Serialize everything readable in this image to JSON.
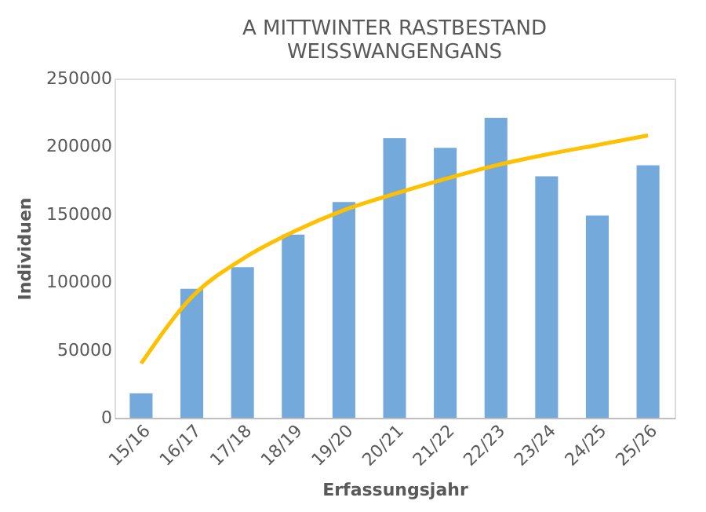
{
  "chart_data": {
    "type": "bar",
    "title": [
      "A MITTWINTER RASTBESTAND",
      "WEISSWANGENGANS"
    ],
    "xlabel": "Erfassungsjahr",
    "ylabel": "Individuen",
    "categories": [
      "15/16",
      "16/17",
      "17/18",
      "18/19",
      "19/20",
      "20/21",
      "21/22",
      "22/23",
      "23/24",
      "24/25",
      "25/26"
    ],
    "series": [
      {
        "color": "#5b9bd5",
        "values": [
          18000,
          95000,
          111000,
          135000,
          159000,
          206000,
          199000,
          221000,
          178000,
          149000,
          186000
        ]
      },
      {
        "type": "line",
        "color": "#ffc000",
        "values": [
          40000,
          89000,
          117000,
          137000,
          153000,
          165000,
          176000,
          186000,
          194000,
          201000,
          208000
        ]
      }
    ],
    "ylim": [
      0,
      250000
    ],
    "yticks": [
      0,
      50000,
      100000,
      150000,
      200000,
      250000
    ],
    "grid": false
  }
}
